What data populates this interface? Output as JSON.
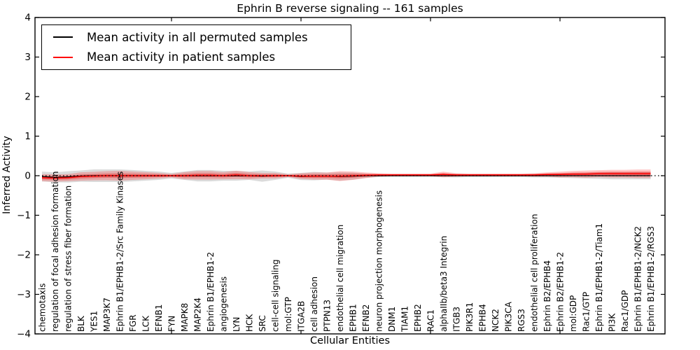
{
  "title": "Ephrin B reverse signaling -- 161 samples",
  "legend": {
    "items": [
      {
        "label": "Mean activity in all permuted samples",
        "color": "#000000"
      },
      {
        "label": "Mean activity in patient samples",
        "color": "#ff0000"
      }
    ]
  },
  "chart_data": {
    "type": "line",
    "title": "Ephrin B reverse signaling -- 161 samples",
    "xlabel": "Cellular Entities",
    "ylabel": "Inferred Activity",
    "ylim": [
      -4,
      4
    ],
    "yticks": [
      -4,
      -3,
      -2,
      -1,
      0,
      1,
      2,
      3,
      4
    ],
    "xticks_minor_positions": [
      10,
      20,
      30,
      40
    ],
    "grid": false,
    "legend_position": "upper left",
    "zero_line": {
      "value": 0,
      "style": "dotted",
      "color": "#000000"
    },
    "categories": [
      "chemotaxis",
      "regulation of focal adhesion formation",
      "regulation of stress fiber formation",
      "BLK",
      "YES1",
      "MAP3K7",
      "Ephrin B1/EPHB1-2/Src Family Kinases",
      "FGR",
      "LCK",
      "EFNB1",
      "FYN",
      "MAPK8",
      "MAP2K4",
      "Ephrin B1/EPHB1-2",
      "angiogenesis",
      "LYN",
      "HCK",
      "SRC",
      "cell-cell signaling",
      "mol:GTP",
      "ITGA2B",
      "cell adhesion",
      "PTPN13",
      "endothelial cell migration",
      "EPHB1",
      "EFNB2",
      "neuron projection morphogenesis",
      "DNM1",
      "TIAM1",
      "EPHB2",
      "RAC1",
      "alphaIIb/beta3 Integrin",
      "ITGB3",
      "PIK3R1",
      "EPHB4",
      "NCK2",
      "PIK3CA",
      "RGS3",
      "endothelial cell proliferation",
      "Ephrin B2/EPHB4",
      "Ephrin B2/EPHB1-2",
      "mol:GDP",
      "Rac1/GTP",
      "Ephrin B1/EPHB1-2/Tiam1",
      "PI3K",
      "Rac1/GDP",
      "Ephrin B1/EPHB1-2/NCK2",
      "Ephrin B1/EPHB1-2/RGS3"
    ],
    "series": [
      {
        "name": "Mean activity in all permuted samples",
        "color": "#000000",
        "band_color": "rgba(110,110,110,0.25)",
        "values": [
          -0.02,
          -0.04,
          -0.03,
          -0.01,
          0,
          0,
          0,
          0,
          0,
          0,
          0,
          0,
          0,
          0,
          0,
          0,
          0,
          -0.01,
          0,
          0,
          -0.02,
          -0.01,
          -0.01,
          -0.02,
          -0.01,
          0,
          0,
          0,
          0,
          0,
          0,
          0,
          0,
          0,
          0,
          0,
          0,
          0,
          0,
          0,
          0,
          0,
          0,
          0,
          0,
          0,
          0,
          0
        ],
        "band_half_width": [
          0.125,
          0.125,
          0.143,
          0.143,
          0.16,
          0.16,
          0.16,
          0.143,
          0.125,
          0.107,
          0.071,
          0.107,
          0.143,
          0.143,
          0.125,
          0.125,
          0.107,
          0.143,
          0.107,
          0.054,
          0.09,
          0.107,
          0.09,
          0.107,
          0.09,
          0.054,
          0.036,
          0.027,
          0.027,
          0.027,
          0.027,
          0.036,
          0.045,
          0.036,
          0.036,
          0.036,
          0.036,
          0.036,
          0.045,
          0.045,
          0.054,
          0.063,
          0.071,
          0.08,
          0.09,
          0.09,
          0.09,
          0.09
        ]
      },
      {
        "name": "Mean activity in patient samples",
        "color": "#ff0000",
        "band_outer_color": "rgba(255,0,0,0.22)",
        "band_inner_color": "rgba(235,0,0,0.33)",
        "values": [
          -0.05,
          -0.06,
          -0.05,
          -0.02,
          -0.01,
          0,
          0,
          0,
          0,
          0,
          0,
          0,
          0.01,
          0.01,
          0,
          0.02,
          0,
          0,
          0,
          0,
          -0.01,
          -0.01,
          -0.01,
          -0.01,
          0,
          0.01,
          0.02,
          0.02,
          0.02,
          0.02,
          0.02,
          0.03,
          0.02,
          0.02,
          0.02,
          0.02,
          0.02,
          0.02,
          0.02,
          0.03,
          0.03,
          0.04,
          0.04,
          0.05,
          0.05,
          0.05,
          0.05,
          0.05
        ],
        "band_outer_half_width": [
          0.09,
          0.09,
          0.09,
          0.107,
          0.107,
          0.116,
          0.125,
          0.107,
          0.09,
          0.071,
          0.045,
          0.09,
          0.107,
          0.107,
          0.09,
          0.107,
          0.09,
          0.071,
          0.071,
          0.036,
          0.071,
          0.09,
          0.09,
          0.125,
          0.107,
          0.071,
          0.045,
          0.036,
          0.036,
          0.036,
          0.036,
          0.071,
          0.045,
          0.036,
          0.036,
          0.036,
          0.036,
          0.036,
          0.045,
          0.054,
          0.071,
          0.08,
          0.09,
          0.09,
          0.098,
          0.098,
          0.107,
          0.107
        ],
        "band_inner_half_width": [
          0.045,
          0.045,
          0.045,
          0.05,
          0.05,
          0.054,
          0.057,
          0.05,
          0.045,
          0.036,
          0.022,
          0.045,
          0.05,
          0.05,
          0.045,
          0.05,
          0.045,
          0.036,
          0.036,
          0.018,
          0.036,
          0.045,
          0.045,
          0.057,
          0.05,
          0.036,
          0.022,
          0.018,
          0.018,
          0.018,
          0.018,
          0.036,
          0.022,
          0.018,
          0.018,
          0.018,
          0.018,
          0.018,
          0.022,
          0.027,
          0.036,
          0.04,
          0.045,
          0.045,
          0.05,
          0.05,
          0.054,
          0.054
        ]
      }
    ]
  }
}
